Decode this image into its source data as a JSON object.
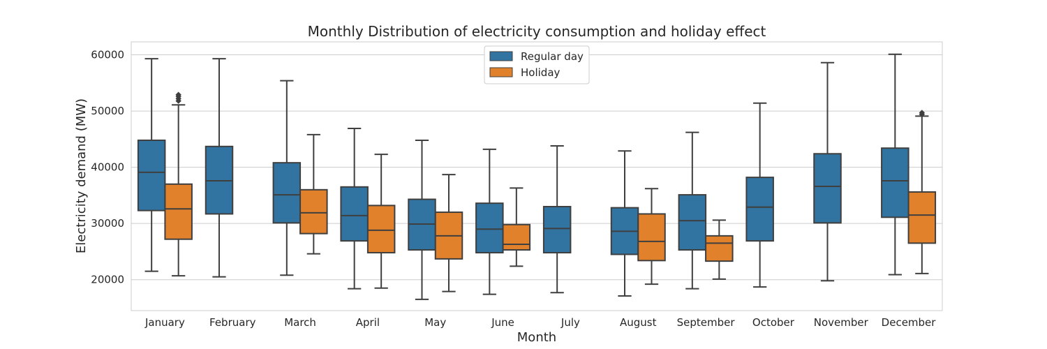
{
  "chart_data": {
    "type": "boxplot",
    "title": "Monthly Distribution of electricity consumption and holiday effect",
    "xlabel": "Month",
    "ylabel": "Electricity demand (MW)",
    "ylim": [
      14500,
      62300
    ],
    "yticks": [
      20000,
      30000,
      40000,
      50000,
      60000
    ],
    "grid": true,
    "legend_placement": "top-center",
    "categories": [
      "January",
      "February",
      "March",
      "April",
      "May",
      "June",
      "July",
      "August",
      "September",
      "October",
      "November",
      "December"
    ],
    "series": [
      {
        "name": "Regular day",
        "color": "#3274a1",
        "boxes": [
          {
            "whislo": 21500,
            "q1": 32300,
            "med": 39100,
            "q3": 44800,
            "whishi": 59300,
            "fliers": []
          },
          {
            "whislo": 20500,
            "q1": 31700,
            "med": 37600,
            "q3": 43700,
            "whishi": 59300,
            "fliers": []
          },
          {
            "whislo": 20800,
            "q1": 30100,
            "med": 35100,
            "q3": 40800,
            "whishi": 55400,
            "fliers": []
          },
          {
            "whislo": 18400,
            "q1": 26900,
            "med": 31400,
            "q3": 36500,
            "whishi": 46900,
            "fliers": []
          },
          {
            "whislo": 16500,
            "q1": 25300,
            "med": 29900,
            "q3": 34300,
            "whishi": 44800,
            "fliers": []
          },
          {
            "whislo": 17400,
            "q1": 24800,
            "med": 29000,
            "q3": 33600,
            "whishi": 43200,
            "fliers": []
          },
          {
            "whislo": 17700,
            "q1": 24800,
            "med": 29100,
            "q3": 33000,
            "whishi": 43800,
            "fliers": []
          },
          {
            "whislo": 17100,
            "q1": 24500,
            "med": 28600,
            "q3": 32800,
            "whishi": 42900,
            "fliers": []
          },
          {
            "whislo": 18400,
            "q1": 25300,
            "med": 30500,
            "q3": 35100,
            "whishi": 46200,
            "fliers": []
          },
          {
            "whislo": 18700,
            "q1": 26900,
            "med": 32900,
            "q3": 38200,
            "whishi": 51400,
            "fliers": []
          },
          {
            "whislo": 19800,
            "q1": 30100,
            "med": 36600,
            "q3": 42400,
            "whishi": 58600,
            "fliers": []
          },
          {
            "whislo": 20900,
            "q1": 31100,
            "med": 37600,
            "q3": 43400,
            "whishi": 60100,
            "fliers": []
          }
        ]
      },
      {
        "name": "Holiday",
        "color": "#e1812c",
        "boxes": [
          {
            "whislo": 20700,
            "q1": 27200,
            "med": 32600,
            "q3": 37000,
            "whishi": 51100,
            "fliers": [
              51800,
              52200,
              52600,
              52900
            ]
          },
          null,
          {
            "whislo": 24600,
            "q1": 28200,
            "med": 31900,
            "q3": 36000,
            "whishi": 45800,
            "fliers": []
          },
          {
            "whislo": 18500,
            "q1": 24800,
            "med": 28800,
            "q3": 33200,
            "whishi": 42300,
            "fliers": []
          },
          {
            "whislo": 17900,
            "q1": 23700,
            "med": 27800,
            "q3": 32000,
            "whishi": 38700,
            "fliers": []
          },
          {
            "whislo": 22400,
            "q1": 25300,
            "med": 26300,
            "q3": 29800,
            "whishi": 36300,
            "fliers": []
          },
          null,
          {
            "whislo": 19200,
            "q1": 23400,
            "med": 26800,
            "q3": 31700,
            "whishi": 36200,
            "fliers": []
          },
          {
            "whislo": 20100,
            "q1": 23300,
            "med": 26500,
            "q3": 27800,
            "whishi": 30600,
            "fliers": []
          },
          null,
          null,
          {
            "whislo": 21100,
            "q1": 26500,
            "med": 31500,
            "q3": 35600,
            "whishi": 49100,
            "fliers": [
              49400,
              49700
            ]
          }
        ]
      }
    ]
  }
}
